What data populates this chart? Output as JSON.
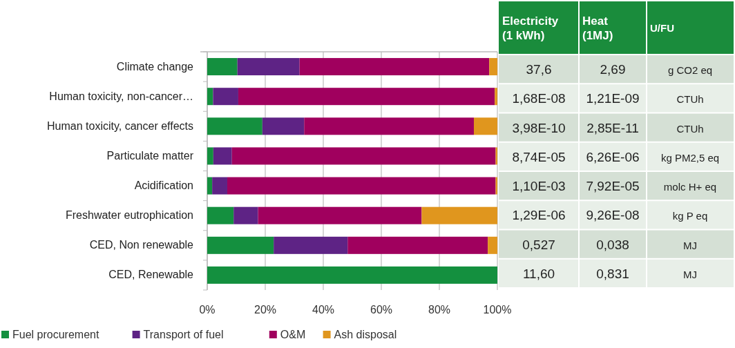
{
  "chart_data": {
    "type": "bar",
    "orientation": "horizontal",
    "stacked": true,
    "categories": [
      "Climate change",
      "Human toxicity, non-cancer…",
      "Human toxicity, cancer effects",
      "Particulate matter",
      "Acidification",
      "Freshwater eutrophication",
      "CED, Non renewable",
      "CED, Renewable"
    ],
    "series": [
      {
        "name": "Fuel procurement",
        "color": "#14903f",
        "values": [
          10.4,
          2.0,
          19.0,
          2.1,
          1.7,
          9.1,
          22.9,
          100
        ]
      },
      {
        "name": "Transport of fuel",
        "color": "#5e2385",
        "values": [
          21.4,
          8.7,
          14.4,
          6.4,
          5.2,
          8.4,
          25.5,
          null
        ]
      },
      {
        "name": "O&M",
        "color": "#a0005e",
        "values": [
          65.4,
          88.4,
          58.5,
          90.9,
          92.5,
          56.4,
          48.3,
          null
        ]
      },
      {
        "name": "Ash disposal",
        "color": "#e0961e",
        "values": [
          2.8,
          0.9,
          8.1,
          0.6,
          0.6,
          26.1,
          3.3,
          null
        ]
      }
    ],
    "xlim": [
      0,
      100
    ],
    "xticks": [
      {
        "value": 0,
        "label": "0%"
      },
      {
        "value": 20,
        "label": "20%"
      },
      {
        "value": 40,
        "label": "40%"
      },
      {
        "value": 60,
        "label": "60%"
      },
      {
        "value": 80,
        "label": "80%"
      },
      {
        "value": 100,
        "label": "100%"
      }
    ],
    "grid": "x",
    "legend": "bottom",
    "annotations": [
      "Electricity (1 kWh)",
      "Heat (1MJ)",
      "U/FU",
      "37,6",
      "2,69",
      "g CO2 eq",
      "1,68E-08",
      "1,21E-09",
      "CTUh",
      "3,98E-10",
      "2,85E-11",
      "CTUh",
      "8,74E-05",
      "6,26E-06",
      "kg PM2,5 eq",
      "1,10E-03",
      "7,92E-05",
      "molc H+ eq",
      "1,29E-06",
      "9,26E-08",
      "kg P eq",
      "0,527",
      "0,038",
      "MJ",
      "11,60",
      "0,831",
      "MJ"
    ]
  }
}
